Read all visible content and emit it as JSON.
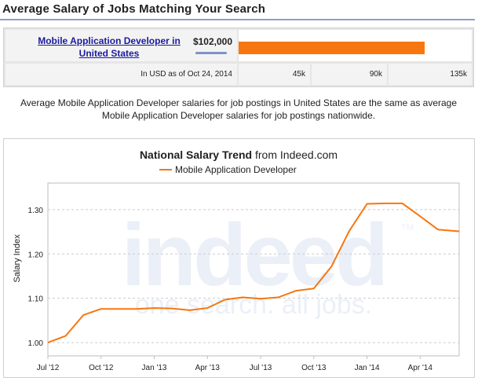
{
  "header": {
    "title": "Average Salary of Jobs Matching Your Search"
  },
  "salary_table": {
    "job_title": "Mobile Application Developer in United States",
    "salary": "$102,000",
    "salary_fraction_of_scale": 0.7963,
    "scale_max": 135000,
    "footnote": "In USD as of Oct 24, 2014",
    "ticks": [
      "45k",
      "90k",
      "135k"
    ]
  },
  "note": "Average Mobile Application Developer salaries for job postings in United States are the same as average Mobile Application Developer salaries for job postings nationwide.",
  "watermark": {
    "brand": "indeed",
    "tagline": "one search. all jobs.",
    "tm": "TM"
  },
  "colors": {
    "accent": "#f7760f",
    "link": "#1b1b9e",
    "header_rule": "#8aa2c8"
  },
  "chart_data": {
    "type": "line",
    "title_bold": "National Salary Trend",
    "title_rest": " from Indeed.com",
    "ylabel": "Salary Index",
    "xlabel": "",
    "legend_position": "top",
    "grid": true,
    "ylim": [
      0.97,
      1.36
    ],
    "yticks": [
      1.0,
      1.1,
      1.2,
      1.3
    ],
    "ytick_labels": [
      "1.00",
      "1.10",
      "1.20",
      "1.30"
    ],
    "xticks": [
      0,
      3,
      6,
      9,
      12,
      15,
      18,
      21
    ],
    "xtick_labels": [
      "Jul '12",
      "Oct '12",
      "Jan '13",
      "Apr '13",
      "Jul '13",
      "Oct '13",
      "Jan '14",
      "Apr '14"
    ],
    "xlim": [
      0,
      23.2
    ],
    "series": [
      {
        "name": "Mobile Application Developer",
        "x": [
          0,
          1,
          2,
          3,
          4,
          5,
          6,
          7,
          8,
          9,
          10,
          11,
          12,
          13,
          14,
          15,
          16,
          17,
          18,
          19,
          20,
          21,
          22,
          23.2
        ],
        "y": [
          1.0,
          1.015,
          1.062,
          1.076,
          1.076,
          1.076,
          1.078,
          1.077,
          1.073,
          1.078,
          1.097,
          1.102,
          1.099,
          1.102,
          1.117,
          1.122,
          1.172,
          1.252,
          1.313,
          1.314,
          1.314,
          1.285,
          1.255,
          1.251
        ]
      }
    ]
  }
}
